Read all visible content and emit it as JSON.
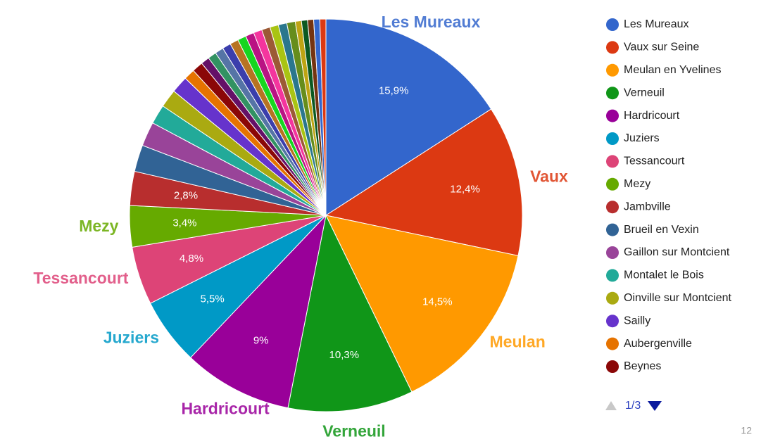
{
  "chart_data": {
    "type": "pie",
    "categories": [
      "Les Mureaux",
      "Vaux sur Seine",
      "Meulan en Yvelines",
      "Verneuil",
      "Hardricourt",
      "Juziers",
      "Tessancourt",
      "Mezy",
      "Jambville",
      "Brueil en Vexin",
      "Gaillon sur Montcient",
      "Montalet le Bois",
      "Oinville sur Montcient",
      "Sailly",
      "Aubergenville",
      "Beynes",
      null,
      null,
      null,
      null,
      null,
      null,
      null,
      null,
      null,
      null,
      null,
      null,
      null,
      null,
      null,
      null,
      null
    ],
    "values": [
      15.9,
      12.4,
      14.5,
      10.3,
      9,
      5.5,
      4.8,
      3.4,
      2.8,
      2.2,
      2.0,
      1.6,
      1.5,
      1.4,
      0.9,
      0.9,
      0.7,
      0.7,
      0.7,
      0.7,
      0.7,
      0.7,
      0.7,
      0.7,
      0.7,
      0.7,
      0.7,
      0.7,
      0.5,
      0.5,
      0.5,
      0.5,
      0.5
    ],
    "value_labels": [
      "15,9%",
      "12,4%",
      "14,5%",
      "10,3%",
      "9%",
      "5,5%",
      "4,8%",
      "3,4%",
      "2,8%",
      null,
      null,
      null,
      null,
      null,
      null,
      null,
      null,
      null,
      null,
      null,
      null,
      null,
      null,
      null,
      null,
      null,
      null,
      null,
      null,
      null,
      null,
      null,
      null
    ],
    "slice_labels": [
      "Les Mureaux",
      "Vaux",
      "Meulan",
      "Verneuil",
      "Hardricourt",
      "Juziers",
      "Tessancourt",
      "Mezy",
      null,
      null,
      null,
      null,
      null,
      null,
      null,
      null,
      null,
      null,
      null,
      null,
      null,
      null,
      null,
      null,
      null,
      null,
      null,
      null,
      null,
      null,
      null,
      null,
      null
    ],
    "colors": [
      "#3366cc",
      "#dc3912",
      "#ff9900",
      "#109618",
      "#990099",
      "#0099c6",
      "#dd4477",
      "#66aa00",
      "#b82e2e",
      "#316395",
      "#994499",
      "#22aa99",
      "#aaaa11",
      "#6633cc",
      "#e67300",
      "#8b0707",
      "#651067",
      "#329262",
      "#5574a6",
      "#3b3eac",
      "#b77322",
      "#16d620",
      "#b91383",
      "#f4359e",
      "#9c5935",
      "#a9c413",
      "#2a778d",
      "#668d1c",
      "#bea413",
      "#0c5922",
      "#743411",
      "#3366cc",
      "#dc3912"
    ],
    "legend_page": "1/3",
    "page_number": "12"
  }
}
